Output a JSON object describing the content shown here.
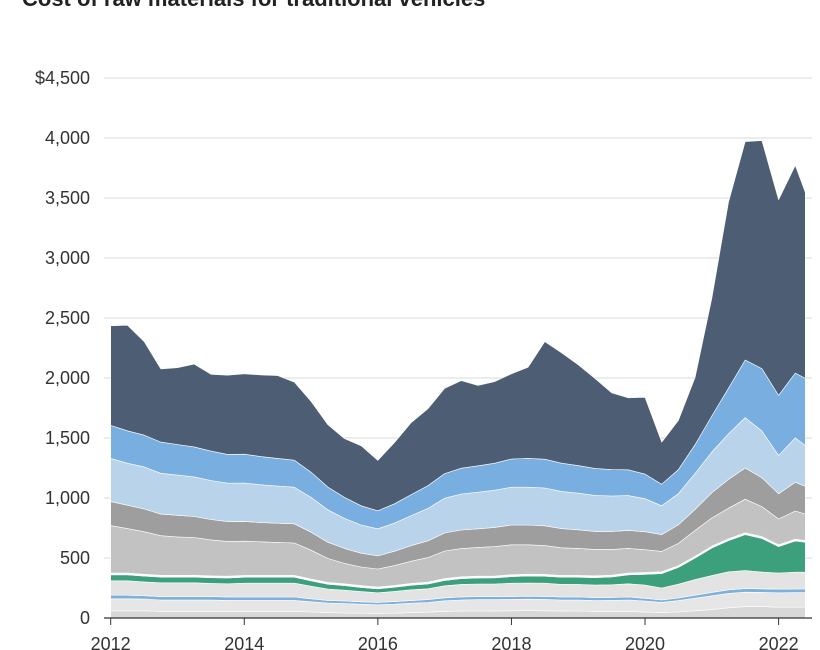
{
  "title": "Cost of raw materials for traditional vehicles",
  "chart_data": {
    "type": "area",
    "stacked": true,
    "title": "Cost of raw materials for traditional vehicles",
    "xlabel": "",
    "ylabel": "",
    "xlim": [
      2011.9,
      2022.5
    ],
    "ylim": [
      0,
      4500
    ],
    "grid": "horizontal",
    "x_ticks": [
      {
        "value": 2012,
        "label": "2012"
      },
      {
        "value": 2014,
        "label": "2014"
      },
      {
        "value": 2016,
        "label": "2016"
      },
      {
        "value": 2018,
        "label": "2018"
      },
      {
        "value": 2020,
        "label": "2020"
      },
      {
        "value": 2022,
        "label": "2022"
      }
    ],
    "y_ticks": [
      {
        "value": 0,
        "label": "0"
      },
      {
        "value": 500,
        "label": "500"
      },
      {
        "value": 1000,
        "label": "1,000"
      },
      {
        "value": 1500,
        "label": "1,500"
      },
      {
        "value": 2000,
        "label": "2,000"
      },
      {
        "value": 2500,
        "label": "2,500"
      },
      {
        "value": 3000,
        "label": "3,000"
      },
      {
        "value": 3500,
        "label": "3,500"
      },
      {
        "value": 4000,
        "label": "4,000"
      },
      {
        "value": 4500,
        "label": "$4,500"
      }
    ],
    "x": [
      2012.0,
      2012.25,
      2012.5,
      2012.75,
      2013.0,
      2013.25,
      2013.5,
      2013.75,
      2014.0,
      2014.25,
      2014.5,
      2014.75,
      2015.0,
      2015.25,
      2015.5,
      2015.75,
      2016.0,
      2016.25,
      2016.5,
      2016.75,
      2017.0,
      2017.25,
      2017.5,
      2017.75,
      2018.0,
      2018.25,
      2018.5,
      2018.75,
      2019.0,
      2019.25,
      2019.5,
      2019.75,
      2020.0,
      2020.25,
      2020.5,
      2020.75,
      2021.0,
      2021.25,
      2021.5,
      2021.75,
      2022.0,
      2022.25,
      2022.4
    ],
    "series": [
      {
        "color": "#d8d8d8",
        "values": [
          60,
          60,
          60,
          55,
          55,
          55,
          55,
          55,
          55,
          55,
          55,
          55,
          50,
          45,
          42,
          40,
          38,
          40,
          45,
          48,
          55,
          58,
          58,
          58,
          60,
          62,
          60,
          58,
          58,
          55,
          55,
          55,
          50,
          45,
          50,
          60,
          70,
          85,
          95,
          95,
          90,
          90,
          90
        ]
      },
      {
        "color": "#e6e6e6",
        "values": [
          100,
          100,
          98,
          95,
          95,
          95,
          95,
          92,
          92,
          92,
          92,
          92,
          85,
          80,
          78,
          75,
          72,
          75,
          78,
          80,
          88,
          92,
          95,
          95,
          95,
          95,
          95,
          92,
          92,
          90,
          92,
          95,
          92,
          85,
          95,
          105,
          115,
          120,
          120,
          118,
          120,
          122,
          122
        ]
      },
      {
        "color": "#7fb0db",
        "values": [
          30,
          30,
          28,
          28,
          28,
          28,
          28,
          28,
          28,
          28,
          28,
          28,
          25,
          22,
          22,
          20,
          20,
          22,
          22,
          25,
          25,
          25,
          25,
          25,
          25,
          25,
          25,
          25,
          25,
          25,
          25,
          25,
          22,
          20,
          22,
          25,
          28,
          30,
          30,
          30,
          30,
          30,
          30
        ]
      },
      {
        "color": "#e3e3e3",
        "values": [
          120,
          120,
          115,
          115,
          115,
          115,
          110,
          110,
          115,
          115,
          115,
          115,
          105,
          95,
          90,
          85,
          80,
          85,
          90,
          90,
          100,
          105,
          105,
          105,
          110,
          110,
          110,
          105,
          105,
          105,
          105,
          110,
          110,
          100,
          115,
          130,
          140,
          150,
          150,
          140,
          135,
          140,
          140
        ]
      },
      {
        "color": "#3da07c",
        "values": [
          50,
          50,
          48,
          48,
          48,
          48,
          48,
          48,
          50,
          50,
          50,
          50,
          45,
          40,
          38,
          35,
          33,
          35,
          38,
          40,
          45,
          48,
          50,
          52,
          55,
          58,
          58,
          60,
          60,
          62,
          65,
          75,
          90,
          120,
          140,
          180,
          230,
          260,
          300,
          280,
          220,
          260,
          250
        ]
      },
      {
        "color": "#ffffff",
        "values": [
          15,
          15,
          15,
          15,
          15,
          15,
          15,
          15,
          15,
          15,
          15,
          15,
          15,
          15,
          15,
          15,
          15,
          15,
          15,
          15,
          15,
          15,
          15,
          15,
          15,
          15,
          15,
          15,
          15,
          15,
          15,
          15,
          15,
          15,
          15,
          15,
          15,
          15,
          15,
          15,
          15,
          15,
          15
        ]
      },
      {
        "color": "#c2c2c2",
        "values": [
          395,
          370,
          355,
          330,
          320,
          315,
          300,
          290,
          285,
          280,
          275,
          270,
          240,
          200,
          170,
          155,
          150,
          165,
          185,
          205,
          230,
          235,
          240,
          245,
          250,
          245,
          240,
          230,
          225,
          220,
          215,
          205,
          190,
          170,
          185,
          215,
          235,
          255,
          280,
          250,
          215,
          235,
          220
        ]
      },
      {
        "color": "#9e9e9e",
        "values": [
          200,
          195,
          190,
          180,
          180,
          175,
          170,
          165,
          165,
          160,
          160,
          160,
          150,
          135,
          125,
          115,
          110,
          120,
          130,
          140,
          150,
          155,
          155,
          160,
          165,
          165,
          165,
          160,
          155,
          150,
          150,
          150,
          150,
          140,
          155,
          175,
          210,
          240,
          260,
          240,
          210,
          240,
          230
        ]
      },
      {
        "color": "#b9d3ea",
        "values": [
          360,
          350,
          350,
          340,
          335,
          330,
          325,
          320,
          320,
          315,
          310,
          305,
          290,
          270,
          250,
          235,
          225,
          235,
          250,
          270,
          290,
          300,
          305,
          310,
          315,
          315,
          315,
          310,
          305,
          300,
          295,
          290,
          275,
          240,
          260,
          300,
          340,
          380,
          420,
          390,
          320,
          370,
          340
        ]
      },
      {
        "color": "#78afe0",
        "values": [
          275,
          270,
          265,
          260,
          255,
          250,
          245,
          240,
          240,
          235,
          230,
          225,
          210,
          190,
          175,
          160,
          150,
          160,
          175,
          190,
          205,
          215,
          220,
          225,
          235,
          240,
          240,
          235,
          230,
          225,
          220,
          215,
          205,
          180,
          200,
          240,
          300,
          380,
          480,
          520,
          500,
          540,
          560
        ]
      },
      {
        "color": "#4d5d74",
        "values": [
          830,
          880,
          780,
          610,
          640,
          690,
          640,
          660,
          670,
          680,
          690,
          650,
          590,
          520,
          490,
          500,
          420,
          510,
          600,
          640,
          710,
          730,
          670,
          680,
          710,
          760,
          980,
          920,
          840,
          750,
          640,
          600,
          640,
          350,
          410,
          560,
          980,
          1550,
          1820,
          1900,
          1630,
          1730,
          1550
        ]
      }
    ]
  }
}
